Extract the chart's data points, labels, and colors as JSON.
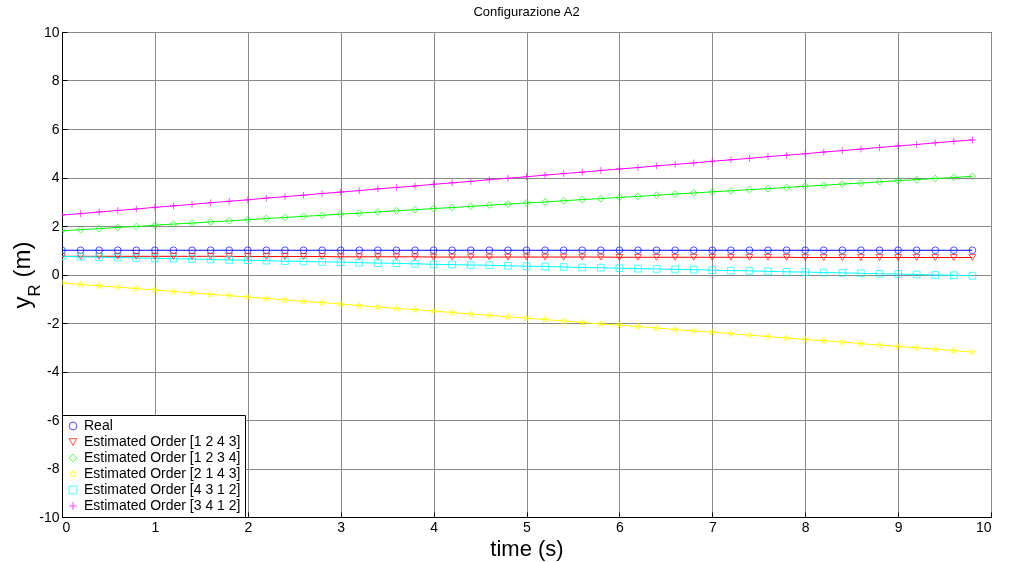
{
  "chart_data": {
    "type": "line",
    "title": "Configurazione A2",
    "xlabel": "time (s)",
    "ylabel": "y$_{R}$ (m)",
    "x": [
      0,
      0.2,
      0.4,
      0.6,
      0.8,
      1,
      1.2,
      1.4,
      1.6,
      1.8,
      2,
      2.2,
      2.4,
      2.6,
      2.8,
      3,
      3.2,
      3.4,
      3.6,
      3.8,
      4,
      4.2,
      4.4,
      4.6,
      4.8,
      5,
      5.2,
      5.4,
      5.6,
      5.8,
      6,
      6.2,
      6.4,
      6.6,
      6.8,
      7,
      7.2,
      7.4,
      7.6,
      7.8,
      8,
      8.2,
      8.4,
      8.6,
      8.8,
      9,
      9.2,
      9.4,
      9.6,
      9.8
    ],
    "series": [
      {
        "name": "Real",
        "color": "#0000ff",
        "marker": "circle",
        "values": [
          1,
          1,
          1,
          1,
          1,
          1,
          1,
          1,
          1,
          1,
          1,
          1,
          1,
          1,
          1,
          1,
          1,
          1,
          1,
          1,
          1,
          1,
          1,
          1,
          1,
          1,
          1,
          1,
          1,
          1,
          1,
          1,
          1,
          1,
          1,
          1,
          1,
          1,
          1,
          1,
          1,
          1,
          1,
          1,
          1,
          1,
          1,
          1,
          1,
          1
        ]
      },
      {
        "name": "Estimated Order [1 2 4 3]",
        "color": "#ff0000",
        "marker": "triangle",
        "values": [
          0.75,
          0.75,
          0.75,
          0.75,
          0.75,
          0.75,
          0.75,
          0.75,
          0.75,
          0.75,
          0.74,
          0.74,
          0.74,
          0.74,
          0.74,
          0.73,
          0.73,
          0.73,
          0.73,
          0.73,
          0.72,
          0.72,
          0.72,
          0.72,
          0.72,
          0.72,
          0.72,
          0.72,
          0.72,
          0.72,
          0.71,
          0.71,
          0.71,
          0.71,
          0.71,
          0.71,
          0.71,
          0.71,
          0.71,
          0.71,
          0.7,
          0.7,
          0.7,
          0.7,
          0.7,
          0.7,
          0.7,
          0.7,
          0.7,
          0.7
        ]
      },
      {
        "name": "Estimated Order [1 2 3 4]",
        "color": "#00ff00",
        "marker": "diamond",
        "values": [
          1.8,
          1.85,
          1.89,
          1.94,
          1.98,
          2.03,
          2.08,
          2.12,
          2.17,
          2.21,
          2.26,
          2.31,
          2.35,
          2.4,
          2.44,
          2.49,
          2.53,
          2.58,
          2.63,
          2.67,
          2.72,
          2.76,
          2.81,
          2.86,
          2.9,
          2.95,
          2.99,
          3.04,
          3.09,
          3.13,
          3.18,
          3.22,
          3.27,
          3.32,
          3.36,
          3.41,
          3.45,
          3.5,
          3.54,
          3.59,
          3.64,
          3.68,
          3.73,
          3.77,
          3.82,
          3.87,
          3.91,
          3.96,
          4,
          4.05
        ]
      },
      {
        "name": "Estimated Order [2 1 4 3]",
        "color": "#ffff00",
        "marker": "star",
        "values": [
          -0.35,
          -0.41,
          -0.47,
          -0.52,
          -0.58,
          -0.64,
          -0.7,
          -0.76,
          -0.82,
          -0.87,
          -0.93,
          -0.99,
          -1.05,
          -1.11,
          -1.16,
          -1.22,
          -1.28,
          -1.34,
          -1.4,
          -1.45,
          -1.51,
          -1.57,
          -1.63,
          -1.69,
          -1.75,
          -1.8,
          -1.86,
          -1.92,
          -1.98,
          -2.04,
          -2.09,
          -2.15,
          -2.21,
          -2.27,
          -2.33,
          -2.38,
          -2.44,
          -2.5,
          -2.56,
          -2.62,
          -2.68,
          -2.73,
          -2.79,
          -2.85,
          -2.91,
          -2.97,
          -3.02,
          -3.08,
          -3.14,
          -3.2
        ]
      },
      {
        "name": "Estimated Order [4 3 1 2]",
        "color": "#00ffff",
        "marker": "square",
        "values": [
          0.75,
          0.73,
          0.72,
          0.7,
          0.68,
          0.67,
          0.65,
          0.64,
          0.62,
          0.6,
          0.59,
          0.57,
          0.55,
          0.54,
          0.52,
          0.51,
          0.49,
          0.47,
          0.46,
          0.44,
          0.42,
          0.41,
          0.39,
          0.38,
          0.36,
          0.34,
          0.33,
          0.31,
          0.29,
          0.28,
          0.26,
          0.24,
          0.23,
          0.21,
          0.2,
          0.18,
          0.16,
          0.15,
          0.13,
          0.11,
          0.1,
          0.08,
          0.07,
          0.05,
          0.03,
          0.02,
          0,
          -0.02,
          -0.03,
          -0.05
        ]
      },
      {
        "name": "Estimated Order [3 4 1 2]",
        "color": "#ff00ff",
        "marker": "cross",
        "values": [
          2.45,
          2.51,
          2.58,
          2.64,
          2.7,
          2.77,
          2.83,
          2.89,
          2.96,
          3.02,
          3.08,
          3.15,
          3.21,
          3.27,
          3.34,
          3.4,
          3.46,
          3.53,
          3.59,
          3.65,
          3.72,
          3.78,
          3.84,
          3.91,
          3.97,
          4.03,
          4.1,
          4.16,
          4.22,
          4.29,
          4.35,
          4.41,
          4.48,
          4.54,
          4.6,
          4.67,
          4.73,
          4.79,
          4.86,
          4.92,
          4.98,
          5.05,
          5.11,
          5.17,
          5.24,
          5.3,
          5.36,
          5.43,
          5.49,
          5.55
        ]
      }
    ],
    "xlim": [
      0,
      10
    ],
    "xticks": [
      0,
      1,
      2,
      3,
      4,
      5,
      6,
      7,
      8,
      9,
      10
    ],
    "ylim": [
      -10,
      10
    ],
    "yticks": [
      -10,
      -8,
      -6,
      -4,
      -2,
      0,
      2,
      4,
      6,
      8,
      10
    ],
    "grid": true,
    "legend": "bottom left",
    "line_style": "solid"
  }
}
